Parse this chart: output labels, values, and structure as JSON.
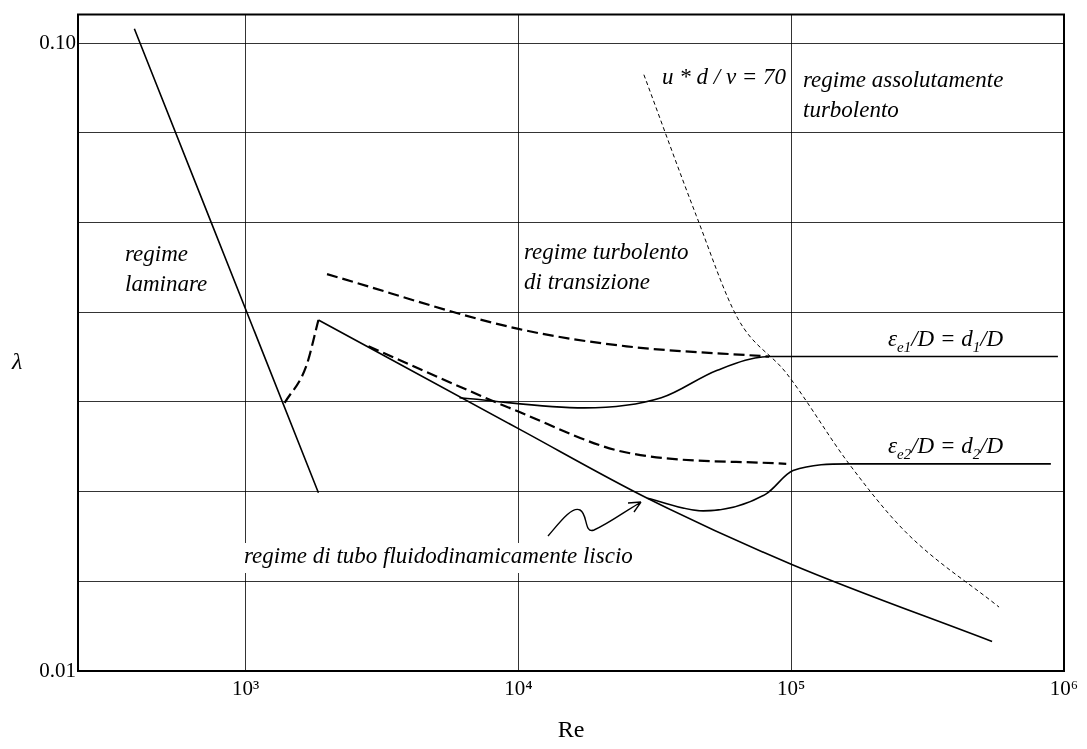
{
  "chart_data": {
    "type": "line",
    "xlabel": "Re",
    "ylabel": "λ",
    "log": "xy",
    "grid": true,
    "legend": false,
    "marker": "none",
    "xlim": [
      243,
      1000000
    ],
    "ylim": [
      0.01,
      0.111
    ],
    "xticks": [
      {
        "value": 1000,
        "label": "10³"
      },
      {
        "value": 10000,
        "label": "10⁴"
      },
      {
        "value": 100000,
        "label": "10⁵"
      },
      {
        "value": 1000000,
        "label": "10⁶"
      }
    ],
    "yticks": [
      0.01,
      {
        "value": 0.01389,
        "label": null
      },
      {
        "value": 0.01931,
        "label": null
      },
      {
        "value": 0.02683,
        "label": null
      },
      {
        "value": 0.03728,
        "label": null
      },
      {
        "value": 0.05179,
        "label": null
      },
      {
        "value": 0.07197,
        "label": null
      },
      {
        "value": 0.1,
        "label": "0.10"
      }
    ],
    "series": [
      {
        "color": "#000000",
        "line_style": "solid",
        "x": [
          391,
          1849
        ],
        "values": [
          0.1054,
          0.01923
        ]
      },
      {
        "color": "#000000",
        "line_style": "dashed",
        "x": [
          1390,
          1667,
          1849
        ],
        "values": [
          0.02673,
          0.03055,
          0.03622
        ]
      },
      {
        "color": "#000000",
        "line_style": "solid",
        "x": [
          1849,
          10000,
          29700,
          100000,
          545000
        ],
        "values": [
          0.03622,
          0.02432,
          0.01884,
          0.01479,
          0.01114
        ]
      },
      {
        "color": "#000000",
        "line_style": "dashed",
        "x": [
          1988,
          10000,
          24900,
          83000
        ],
        "values": [
          0.04285,
          0.03506,
          0.03289,
          0.03168
        ]
      },
      {
        "color": "#000000",
        "line_style": "solid",
        "x": [
          6080,
          17460,
          33400,
          53600,
          83000,
          950000
        ],
        "values": [
          0.02723,
          0.02624,
          0.02723,
          0.03013,
          0.03168,
          0.03168
        ]
      },
      {
        "color": "#000000",
        "line_style": "dashed",
        "x": [
          2822,
          10000,
          24900,
          95900
        ],
        "values": [
          0.03289,
          0.02589,
          0.02228,
          0.02137
        ]
      },
      {
        "color": "#000000",
        "line_style": "solid",
        "x": [
          29700,
          47600,
          80700,
          101600,
          163000,
          895000
        ],
        "values": [
          0.01884,
          0.01799,
          0.01913,
          0.02085,
          0.02137,
          0.02137
        ]
      },
      {
        "color": "#000000",
        "line_style": "dotted",
        "x": [
          28840,
          44900,
          63800,
          96100,
          163000,
          262000,
          578000
        ],
        "values": [
          0.08904,
          0.05309,
          0.03639,
          0.02979,
          0.02137,
          0.01667,
          0.01264
        ]
      }
    ],
    "annotations": [
      "regime\nlaminare",
      "regime turbolento\ndi transizione",
      "u * d / ν = 70",
      "regime assolutamente\nturbolento",
      "ε$_{e1}$/D = d$_{1}$/D",
      "ε$_{e2}$/D = d$_{2}$/D",
      "regime di tubo fluidodinamicamente liscio"
    ]
  }
}
